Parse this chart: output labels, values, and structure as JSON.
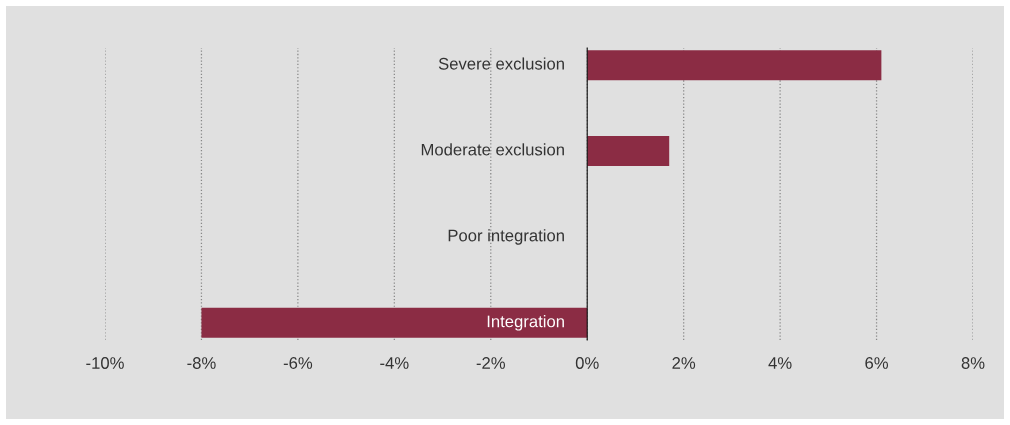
{
  "chart_data": {
    "type": "bar",
    "orientation": "horizontal",
    "categories": [
      "Severe exclusion",
      "Moderate exclusion",
      "Poor integration",
      "Integration"
    ],
    "values": [
      6.1,
      1.7,
      0,
      -8.0
    ],
    "color": "#8b2c44",
    "xlim": [
      -10,
      8
    ],
    "xticks": [
      {
        "value": -10,
        "label": "-10%"
      },
      {
        "value": -8,
        "label": "-8%"
      },
      {
        "value": -6,
        "label": "-6%"
      },
      {
        "value": -4,
        "label": "-4%"
      },
      {
        "value": -2,
        "label": "-2%"
      },
      {
        "value": 0,
        "label": "0%"
      },
      {
        "value": 2,
        "label": "2%"
      },
      {
        "value": 4,
        "label": "4%"
      },
      {
        "value": 6,
        "label": "6%"
      },
      {
        "value": 8,
        "label": "8%"
      }
    ],
    "grid": "x",
    "legend": false
  }
}
